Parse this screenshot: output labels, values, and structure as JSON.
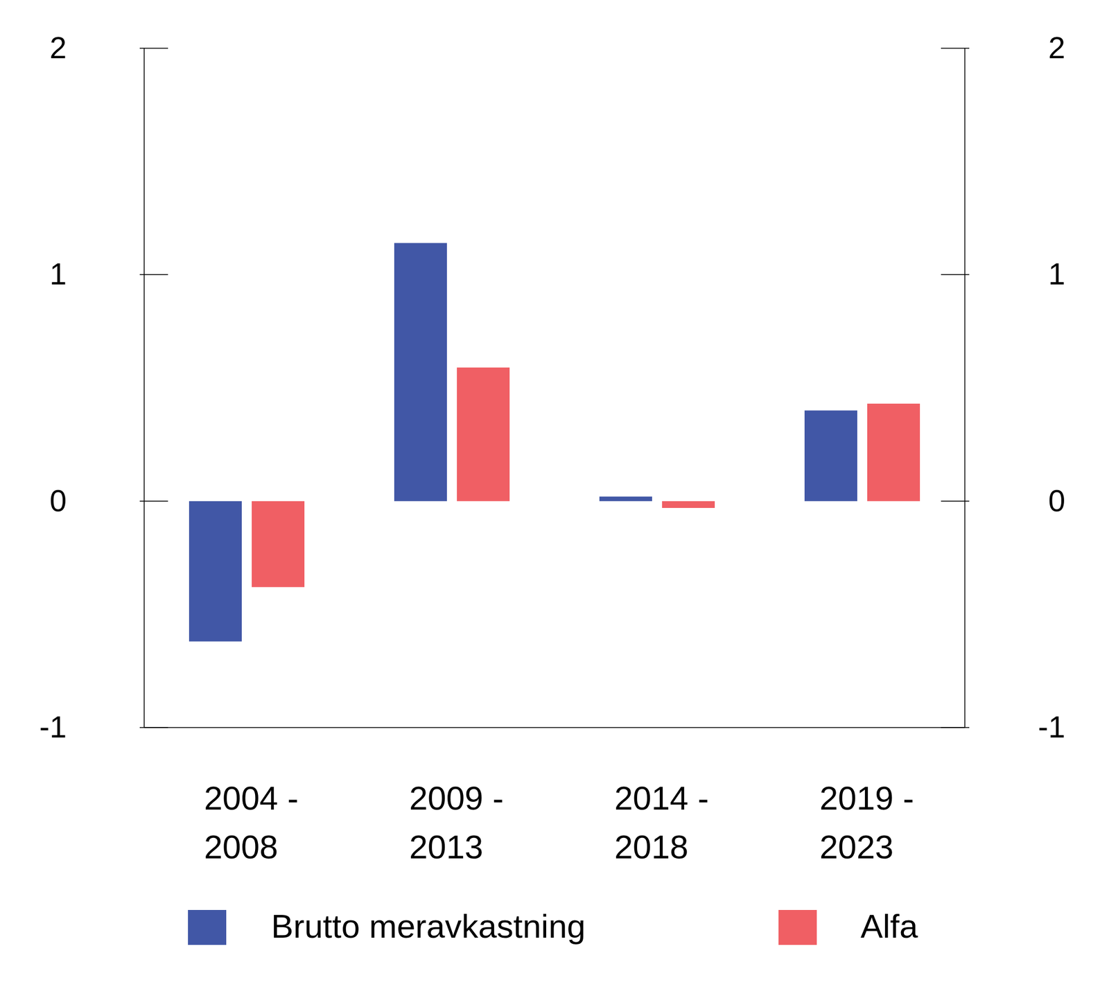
{
  "chart_data": {
    "type": "bar",
    "categories": [
      "2004 -\n2008",
      "2009 -\n2013",
      "2014 -\n2018",
      "2019 -\n2023"
    ],
    "series": [
      {
        "name": "Brutto meravkastning",
        "color": "#4157a6",
        "values": [
          -0.62,
          1.14,
          0.02,
          0.4
        ]
      },
      {
        "name": "Alfa",
        "color": "#f05f64",
        "values": [
          -0.38,
          0.59,
          -0.03,
          0.43
        ]
      }
    ],
    "ylim": [
      -1,
      2
    ],
    "yticks": [
      -1,
      0,
      1,
      2
    ],
    "y2lim": [
      -1,
      2
    ],
    "y2ticks": [
      -1,
      0,
      1,
      2
    ],
    "legend": "bottom"
  }
}
